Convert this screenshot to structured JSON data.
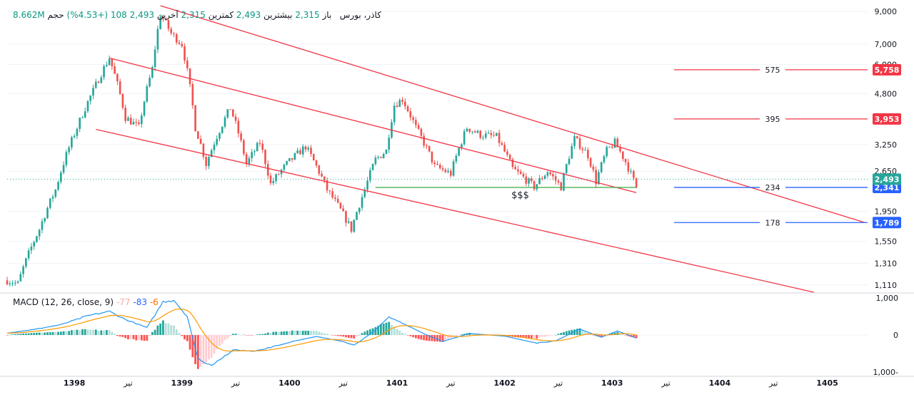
{
  "header": {
    "symbol": "کاذر، بورس",
    "open_label": "باز",
    "open_value": "2,315",
    "high_label": "بیشترین",
    "high_value": "2,493",
    "low_label": "کمترین",
    "low_value": "2,315",
    "close_label": "آخرین",
    "close_value": "2,493",
    "change": "108 (+4.53%)",
    "volume_label": "حجم",
    "volume_value": "8.662M"
  },
  "macd_header": {
    "title": "MACD (12, 26, close, 9)",
    "hist_value": "-77",
    "macd_value": "-83",
    "signal_value": "-6"
  },
  "colors": {
    "up": "#26a69a",
    "down": "#ef5350",
    "channel": "#f23645",
    "support_line": "#4caf50",
    "blue_level": "#2962ff",
    "macd_line": "#2196f3",
    "signal_line": "#ff9800",
    "grid": "#f0f3fa",
    "axis_text": "#131722"
  },
  "chart_data": [
    {
      "type": "candlestick",
      "title": "کاذر، بورس",
      "y_scale": "log",
      "ylim": [
        1050,
        9400
      ],
      "y_ticks": [
        9000,
        7000,
        6000,
        4800,
        3250,
        2650,
        1950,
        1550,
        1310,
        1110
      ],
      "y_tick_labels": [
        "9,000",
        "7,000",
        "6,000",
        "4,800",
        "3,250",
        "2,650",
        "1,950",
        "1,550",
        "1,310",
        "1,110"
      ],
      "x_tick_labels": [
        "1398",
        "تیر",
        "1399",
        "تیر",
        "1400",
        "تیر",
        "1401",
        "تیر",
        "1402",
        "تیر",
        "1403",
        "تیر",
        "1404",
        "تیر",
        "1405"
      ],
      "waypoints": [
        {
          "t": 0.0,
          "price": 1150
        },
        {
          "t": 0.4,
          "price": 1120
        },
        {
          "t": 1.2,
          "price": 1700
        },
        {
          "t": 1.8,
          "price": 2300
        },
        {
          "t": 2.6,
          "price": 3700
        },
        {
          "t": 3.2,
          "price": 4900
        },
        {
          "t": 3.8,
          "price": 6300
        },
        {
          "t": 4.4,
          "price": 4000
        },
        {
          "t": 4.9,
          "price": 3700
        },
        {
          "t": 5.4,
          "price": 5800
        },
        {
          "t": 5.7,
          "price": 8800
        },
        {
          "t": 6.1,
          "price": 7600
        },
        {
          "t": 6.5,
          "price": 7000
        },
        {
          "t": 7.0,
          "price": 3700
        },
        {
          "t": 7.4,
          "price": 2800
        },
        {
          "t": 8.3,
          "price": 4300
        },
        {
          "t": 8.9,
          "price": 2800
        },
        {
          "t": 9.4,
          "price": 3300
        },
        {
          "t": 9.8,
          "price": 2400
        },
        {
          "t": 10.4,
          "price": 2800
        },
        {
          "t": 11.1,
          "price": 3200
        },
        {
          "t": 11.9,
          "price": 2300
        },
        {
          "t": 12.5,
          "price": 1900
        },
        {
          "t": 12.8,
          "price": 1700
        },
        {
          "t": 13.3,
          "price": 2300
        },
        {
          "t": 13.7,
          "price": 2900
        },
        {
          "t": 14.1,
          "price": 3100
        },
        {
          "t": 14.4,
          "price": 4400
        },
        {
          "t": 14.7,
          "price": 4600
        },
        {
          "t": 15.2,
          "price": 3700
        },
        {
          "t": 15.9,
          "price": 2750
        },
        {
          "t": 16.5,
          "price": 2600
        },
        {
          "t": 17.1,
          "price": 3700
        },
        {
          "t": 17.6,
          "price": 3500
        },
        {
          "t": 18.2,
          "price": 3450
        },
        {
          "t": 18.8,
          "price": 2700
        },
        {
          "t": 19.6,
          "price": 2350
        },
        {
          "t": 20.1,
          "price": 2650
        },
        {
          "t": 20.6,
          "price": 2350
        },
        {
          "t": 21.1,
          "price": 3400
        },
        {
          "t": 21.6,
          "price": 3000
        },
        {
          "t": 21.9,
          "price": 2450
        },
        {
          "t": 22.3,
          "price": 3100
        },
        {
          "t": 22.6,
          "price": 3300
        },
        {
          "t": 23.0,
          "price": 2850
        },
        {
          "t": 23.4,
          "price": 2341
        }
      ],
      "channel": {
        "upper": [
          {
            "t": 5.7,
            "price": 9400
          },
          {
            "t": 31.9,
            "price": 1789
          }
        ],
        "middle": [
          {
            "t": 3.8,
            "price": 6300
          },
          {
            "t": 23.4,
            "price": 2250
          }
        ],
        "lower": [
          {
            "t": 3.3,
            "price": 3650
          },
          {
            "t": 30.0,
            "price": 1050
          }
        ]
      },
      "support": {
        "t_start": 13.7,
        "t_end": 23.4,
        "price": 2341,
        "label": "$$$"
      },
      "levels": [
        {
          "label": "575",
          "price": 5758,
          "tag": "5,758",
          "color": "#f23645"
        },
        {
          "label": "395",
          "price": 3953,
          "tag": "3,953",
          "color": "#f23645"
        },
        {
          "label": "234",
          "price": 2341,
          "tag": "2,341",
          "color": "#2962ff"
        },
        {
          "label": "178",
          "price": 1789,
          "tag": "1,789",
          "color": "#2962ff"
        }
      ],
      "last_price": {
        "price": 2493,
        "tag": "2,493"
      }
    },
    {
      "type": "macd",
      "title": "MACD (12, 26, close, 9)",
      "ylim": [
        -1100,
        1100
      ],
      "y_ticks": [
        1000,
        0,
        -1000
      ],
      "y_tick_labels": [
        "1,000",
        "0",
        "1,000-"
      ],
      "macd_waypoints": [
        {
          "t": 0.0,
          "v": 50
        },
        {
          "t": 1.0,
          "v": 150
        },
        {
          "t": 2.0,
          "v": 280
        },
        {
          "t": 3.0,
          "v": 520
        },
        {
          "t": 3.8,
          "v": 640
        },
        {
          "t": 4.4,
          "v": 420
        },
        {
          "t": 5.2,
          "v": 200
        },
        {
          "t": 5.8,
          "v": 900
        },
        {
          "t": 6.2,
          "v": 950
        },
        {
          "t": 6.7,
          "v": 500
        },
        {
          "t": 7.1,
          "v": -650
        },
        {
          "t": 7.6,
          "v": -850
        },
        {
          "t": 8.4,
          "v": -400
        },
        {
          "t": 9.2,
          "v": -450
        },
        {
          "t": 10.6,
          "v": -180
        },
        {
          "t": 11.5,
          "v": -40
        },
        {
          "t": 12.4,
          "v": -160
        },
        {
          "t": 12.9,
          "v": -280
        },
        {
          "t": 13.6,
          "v": 80
        },
        {
          "t": 14.2,
          "v": 480
        },
        {
          "t": 14.6,
          "v": 360
        },
        {
          "t": 15.6,
          "v": 0
        },
        {
          "t": 16.2,
          "v": -170
        },
        {
          "t": 17.2,
          "v": 40
        },
        {
          "t": 18.5,
          "v": -30
        },
        {
          "t": 19.7,
          "v": -220
        },
        {
          "t": 20.4,
          "v": -160
        },
        {
          "t": 21.3,
          "v": 160
        },
        {
          "t": 22.1,
          "v": -60
        },
        {
          "t": 22.7,
          "v": 110
        },
        {
          "t": 23.4,
          "v": -83
        }
      ],
      "histogram_last": -77,
      "signal_last": -6
    }
  ]
}
